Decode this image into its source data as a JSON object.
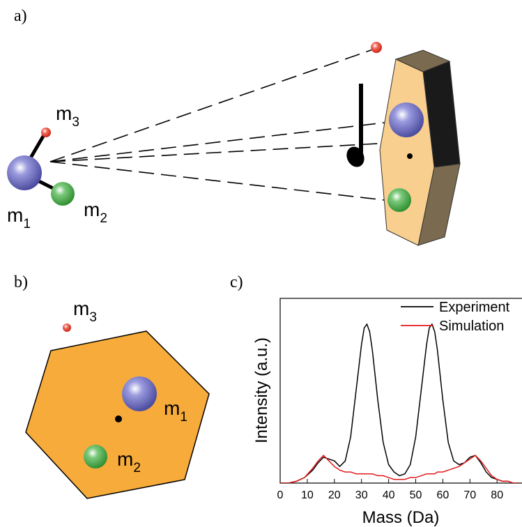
{
  "panel_labels": [
    "a)",
    "b)",
    "c)"
  ],
  "panel_a": {
    "m1": {
      "text": "m",
      "sub": "1"
    },
    "m2": {
      "text": "m",
      "sub": "2"
    },
    "m3": {
      "text": "m",
      "sub": "3"
    }
  },
  "panel_b": {
    "m1": {
      "text": "m",
      "sub": "1"
    },
    "m2": {
      "text": "m",
      "sub": "2"
    },
    "m3": {
      "text": "m",
      "sub": "3"
    }
  },
  "chart_data": {
    "type": "line",
    "x_label": "Mass (Da)",
    "y_label": "Intensity (a.u.)",
    "x": [
      0,
      3,
      6,
      9,
      12,
      14,
      16,
      18,
      20,
      22,
      24,
      26,
      28,
      30,
      31,
      32,
      33,
      34,
      36,
      38,
      40,
      42,
      44,
      46,
      48,
      50,
      52,
      54,
      55,
      56,
      57,
      58,
      60,
      62,
      64,
      66,
      68,
      70,
      72,
      74,
      76,
      78,
      80,
      82,
      84,
      86,
      88
    ],
    "series": [
      {
        "name": "Experiment",
        "color": "#000000",
        "values": [
          0,
          0,
          0.01,
          0.03,
          0.07,
          0.11,
          0.14,
          0.13,
          0.12,
          0.09,
          0.12,
          0.25,
          0.5,
          0.75,
          0.84,
          0.86,
          0.82,
          0.72,
          0.45,
          0.22,
          0.1,
          0.06,
          0.04,
          0.05,
          0.1,
          0.25,
          0.5,
          0.75,
          0.84,
          0.86,
          0.82,
          0.72,
          0.45,
          0.22,
          0.12,
          0.1,
          0.11,
          0.14,
          0.15,
          0.11,
          0.06,
          0.03,
          0.02,
          0.01,
          0.01,
          0,
          0
        ]
      },
      {
        "name": "Simulation",
        "color": "#e41a1c",
        "values": [
          0,
          0,
          0.01,
          0.03,
          0.08,
          0.12,
          0.15,
          0.12,
          0.09,
          0.07,
          0.06,
          0.06,
          0.05,
          0.05,
          0.05,
          0.05,
          0.05,
          0.05,
          0.04,
          0.04,
          0.03,
          0.02,
          0.02,
          0.02,
          0.03,
          0.03,
          0.04,
          0.05,
          0.05,
          0.05,
          0.05,
          0.06,
          0.06,
          0.07,
          0.08,
          0.09,
          0.11,
          0.13,
          0.15,
          0.12,
          0.08,
          0.04,
          0.02,
          0.01,
          0.01,
          0,
          0
        ]
      }
    ],
    "xlim": [
      0,
      89
    ],
    "ylim": [
      0,
      1
    ],
    "xticks": [
      0,
      10,
      20,
      30,
      40,
      50,
      60,
      70,
      80
    ],
    "legend": "upper right"
  }
}
